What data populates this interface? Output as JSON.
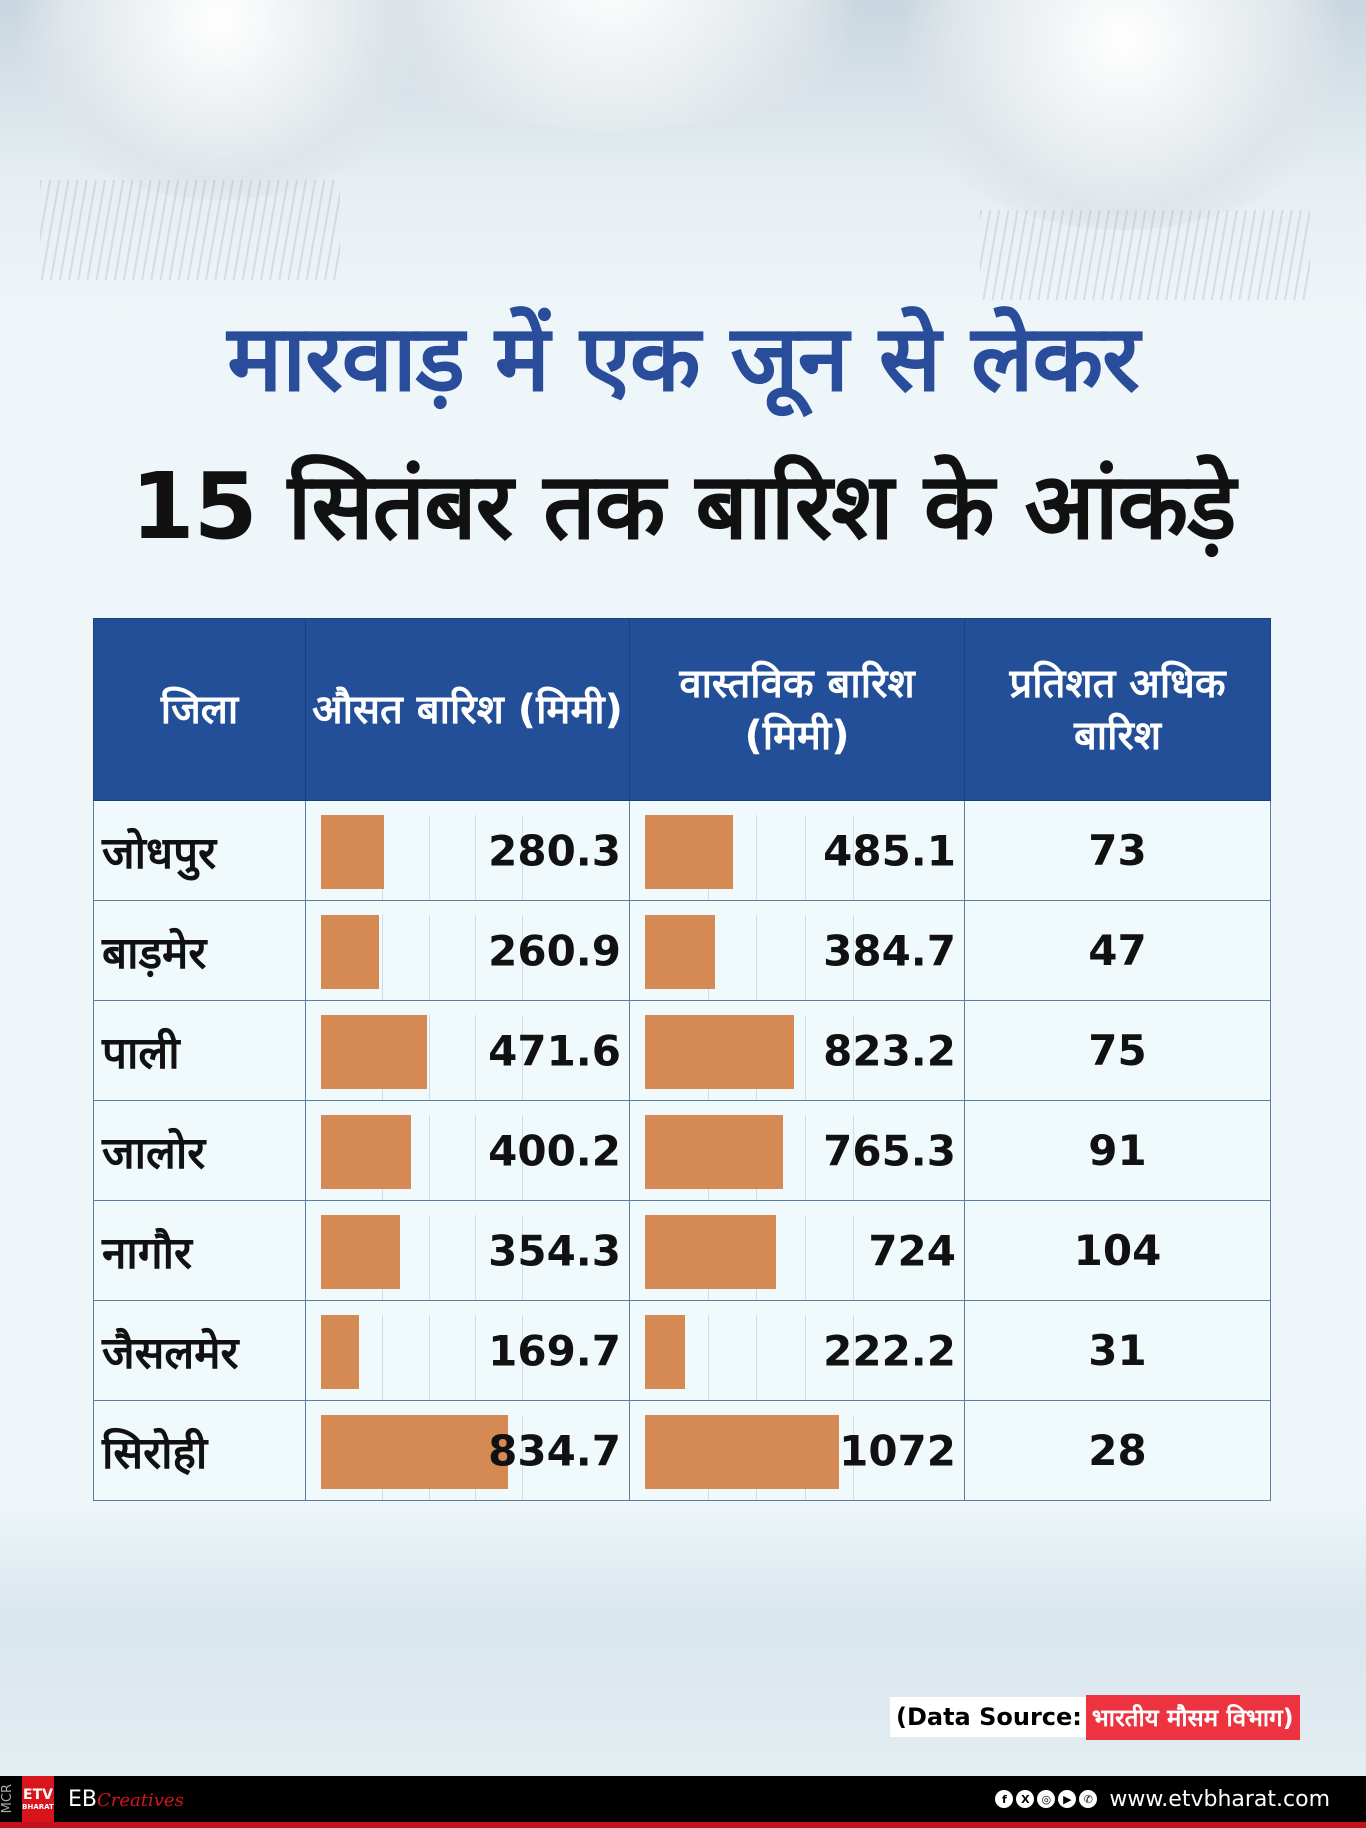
{
  "title_line1": "मारवाड़ में एक जून से लेकर",
  "title_line2": "15 सितंबर तक बारिश के आंकड़े",
  "chart_data": {
    "type": "table",
    "columns": [
      "जिला",
      "औसत बारिश (मिमी)",
      "वास्तविक बारिश (मिमी)",
      "प्रतिशत अधिक बारिश"
    ],
    "rows": [
      {
        "district": "जोधपुर",
        "average": "280.3",
        "actual": "485.1",
        "percent": "73"
      },
      {
        "district": "बाड़मेर",
        "average": "260.9",
        "actual": "384.7",
        "percent": "47"
      },
      {
        "district": "पाली",
        "average": "471.6",
        "actual": "823.2",
        "percent": "75"
      },
      {
        "district": "जालोर",
        "average": "400.2",
        "actual": "765.3",
        "percent": "91"
      },
      {
        "district": "नागौर",
        "average": "354.3",
        "actual": "724",
        "percent": "104"
      },
      {
        "district": "जैसलमेर",
        "average": "169.7",
        "actual": "222.2",
        "percent": "31"
      },
      {
        "district": "सिरोही",
        "average": "834.7",
        "actual": "1072",
        "percent": "28"
      }
    ],
    "bar_color": "#d48a52",
    "header_color": "#224f97"
  },
  "source": {
    "label": "(Data Source:",
    "value": "भारतीय मौसम विभाग)"
  },
  "footer": {
    "mcr": "MCR",
    "logo": "ETV",
    "logo_sub": "BHARAT",
    "eb": "EB",
    "creatives": "Creatives",
    "url": "www.etvbharat.com",
    "social_icons": [
      "facebook-icon",
      "x-icon",
      "instagram-icon",
      "youtube-icon",
      "whatsapp-icon"
    ]
  }
}
